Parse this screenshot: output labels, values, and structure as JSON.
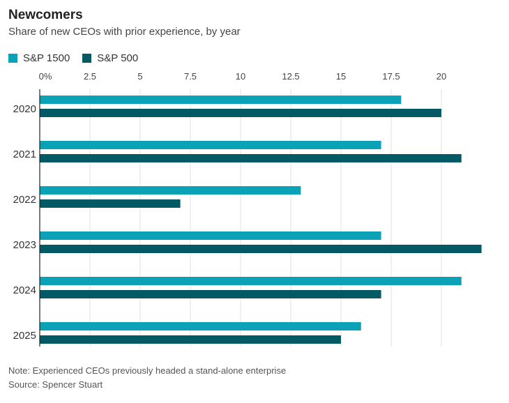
{
  "chart_data": {
    "type": "bar",
    "orientation": "horizontal",
    "title": "Newcomers",
    "subtitle": "Share of new CEOs with prior experience, by year",
    "categories": [
      "2020",
      "2021",
      "2022",
      "2023",
      "2024",
      "2025"
    ],
    "series": [
      {
        "name": "S&P 1500",
        "color": "#0ba2b8",
        "values": [
          18,
          17,
          13,
          17,
          21,
          16
        ]
      },
      {
        "name": "S&P 500",
        "color": "#045a64",
        "values": [
          20,
          21,
          7,
          22,
          17,
          15
        ]
      }
    ],
    "xticks": [
      0,
      2.5,
      5,
      7.5,
      10,
      12.5,
      15,
      17.5,
      20
    ],
    "xtick_labels": [
      "0%",
      "2.5",
      "5",
      "7.5",
      "10",
      "12.5",
      "15",
      "17.5",
      "20"
    ],
    "xlim": [
      0,
      22.5
    ],
    "grid": true,
    "legend_position": "top-left",
    "note": "Note: Experienced CEOs previously headed a stand-alone enterprise",
    "source": "Source: Spencer Stuart"
  }
}
